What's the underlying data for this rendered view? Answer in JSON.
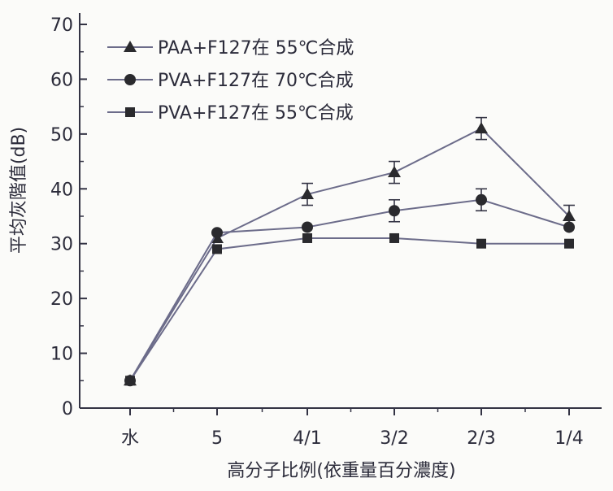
{
  "chart_data": {
    "type": "line",
    "title": "",
    "xlabel": "高分子比例(依重量百分濃度)",
    "ylabel": "平均灰階值(dB)",
    "ylim": [
      0,
      70
    ],
    "yticks": [
      0,
      10,
      20,
      30,
      40,
      50,
      60,
      70
    ],
    "categories": [
      "水",
      "5",
      "4/1",
      "3/2",
      "2/3",
      "1/4"
    ],
    "grid": false,
    "legend_position": "top-left",
    "series": [
      {
        "name": "PAA+F127在 55℃合成",
        "marker": "triangle",
        "values": [
          5,
          31,
          39,
          43,
          51,
          35
        ],
        "error": [
          0,
          0,
          2,
          2,
          2,
          2
        ]
      },
      {
        "name": "PVA+F127在 70℃合成",
        "marker": "circle",
        "values": [
          5,
          32,
          33,
          36,
          38,
          33
        ],
        "error": [
          0,
          0,
          0,
          2,
          2,
          0
        ]
      },
      {
        "name": "PVA+F127在 55℃合成",
        "marker": "square",
        "values": [
          5,
          29,
          31,
          31,
          30,
          30
        ],
        "error": [
          0,
          0,
          0,
          0,
          0,
          0
        ]
      }
    ],
    "colors": {
      "line": "#6c6c8a",
      "marker": "#2a2a2e",
      "axis": "#333344",
      "text": "#2b2b3a"
    }
  }
}
